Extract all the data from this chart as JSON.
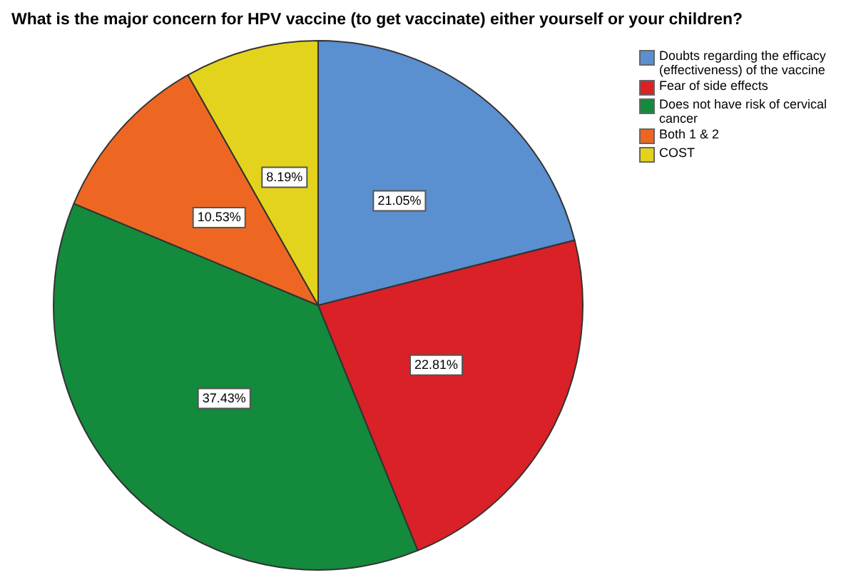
{
  "chart_data": {
    "type": "pie",
    "title": "What is the major concern for HPV vaccine (to get vaccinate) either yourself or your children?",
    "categories": [
      "Doubts regarding the efficacy (effectiveness) of the vaccine",
      "Fear of side effects",
      "Does not have risk of cervical cancer",
      "Both 1 & 2",
      "COST"
    ],
    "values": [
      21.05,
      22.81,
      37.43,
      10.53,
      8.19
    ],
    "colors": [
      "#5a8fd0",
      "#d92127",
      "#138a3c",
      "#ee6722",
      "#e4d31c"
    ],
    "value_labels": [
      "21.05%",
      "22.81%",
      "37.43%",
      "10.53%",
      "8.19%"
    ],
    "legend": "top right"
  }
}
